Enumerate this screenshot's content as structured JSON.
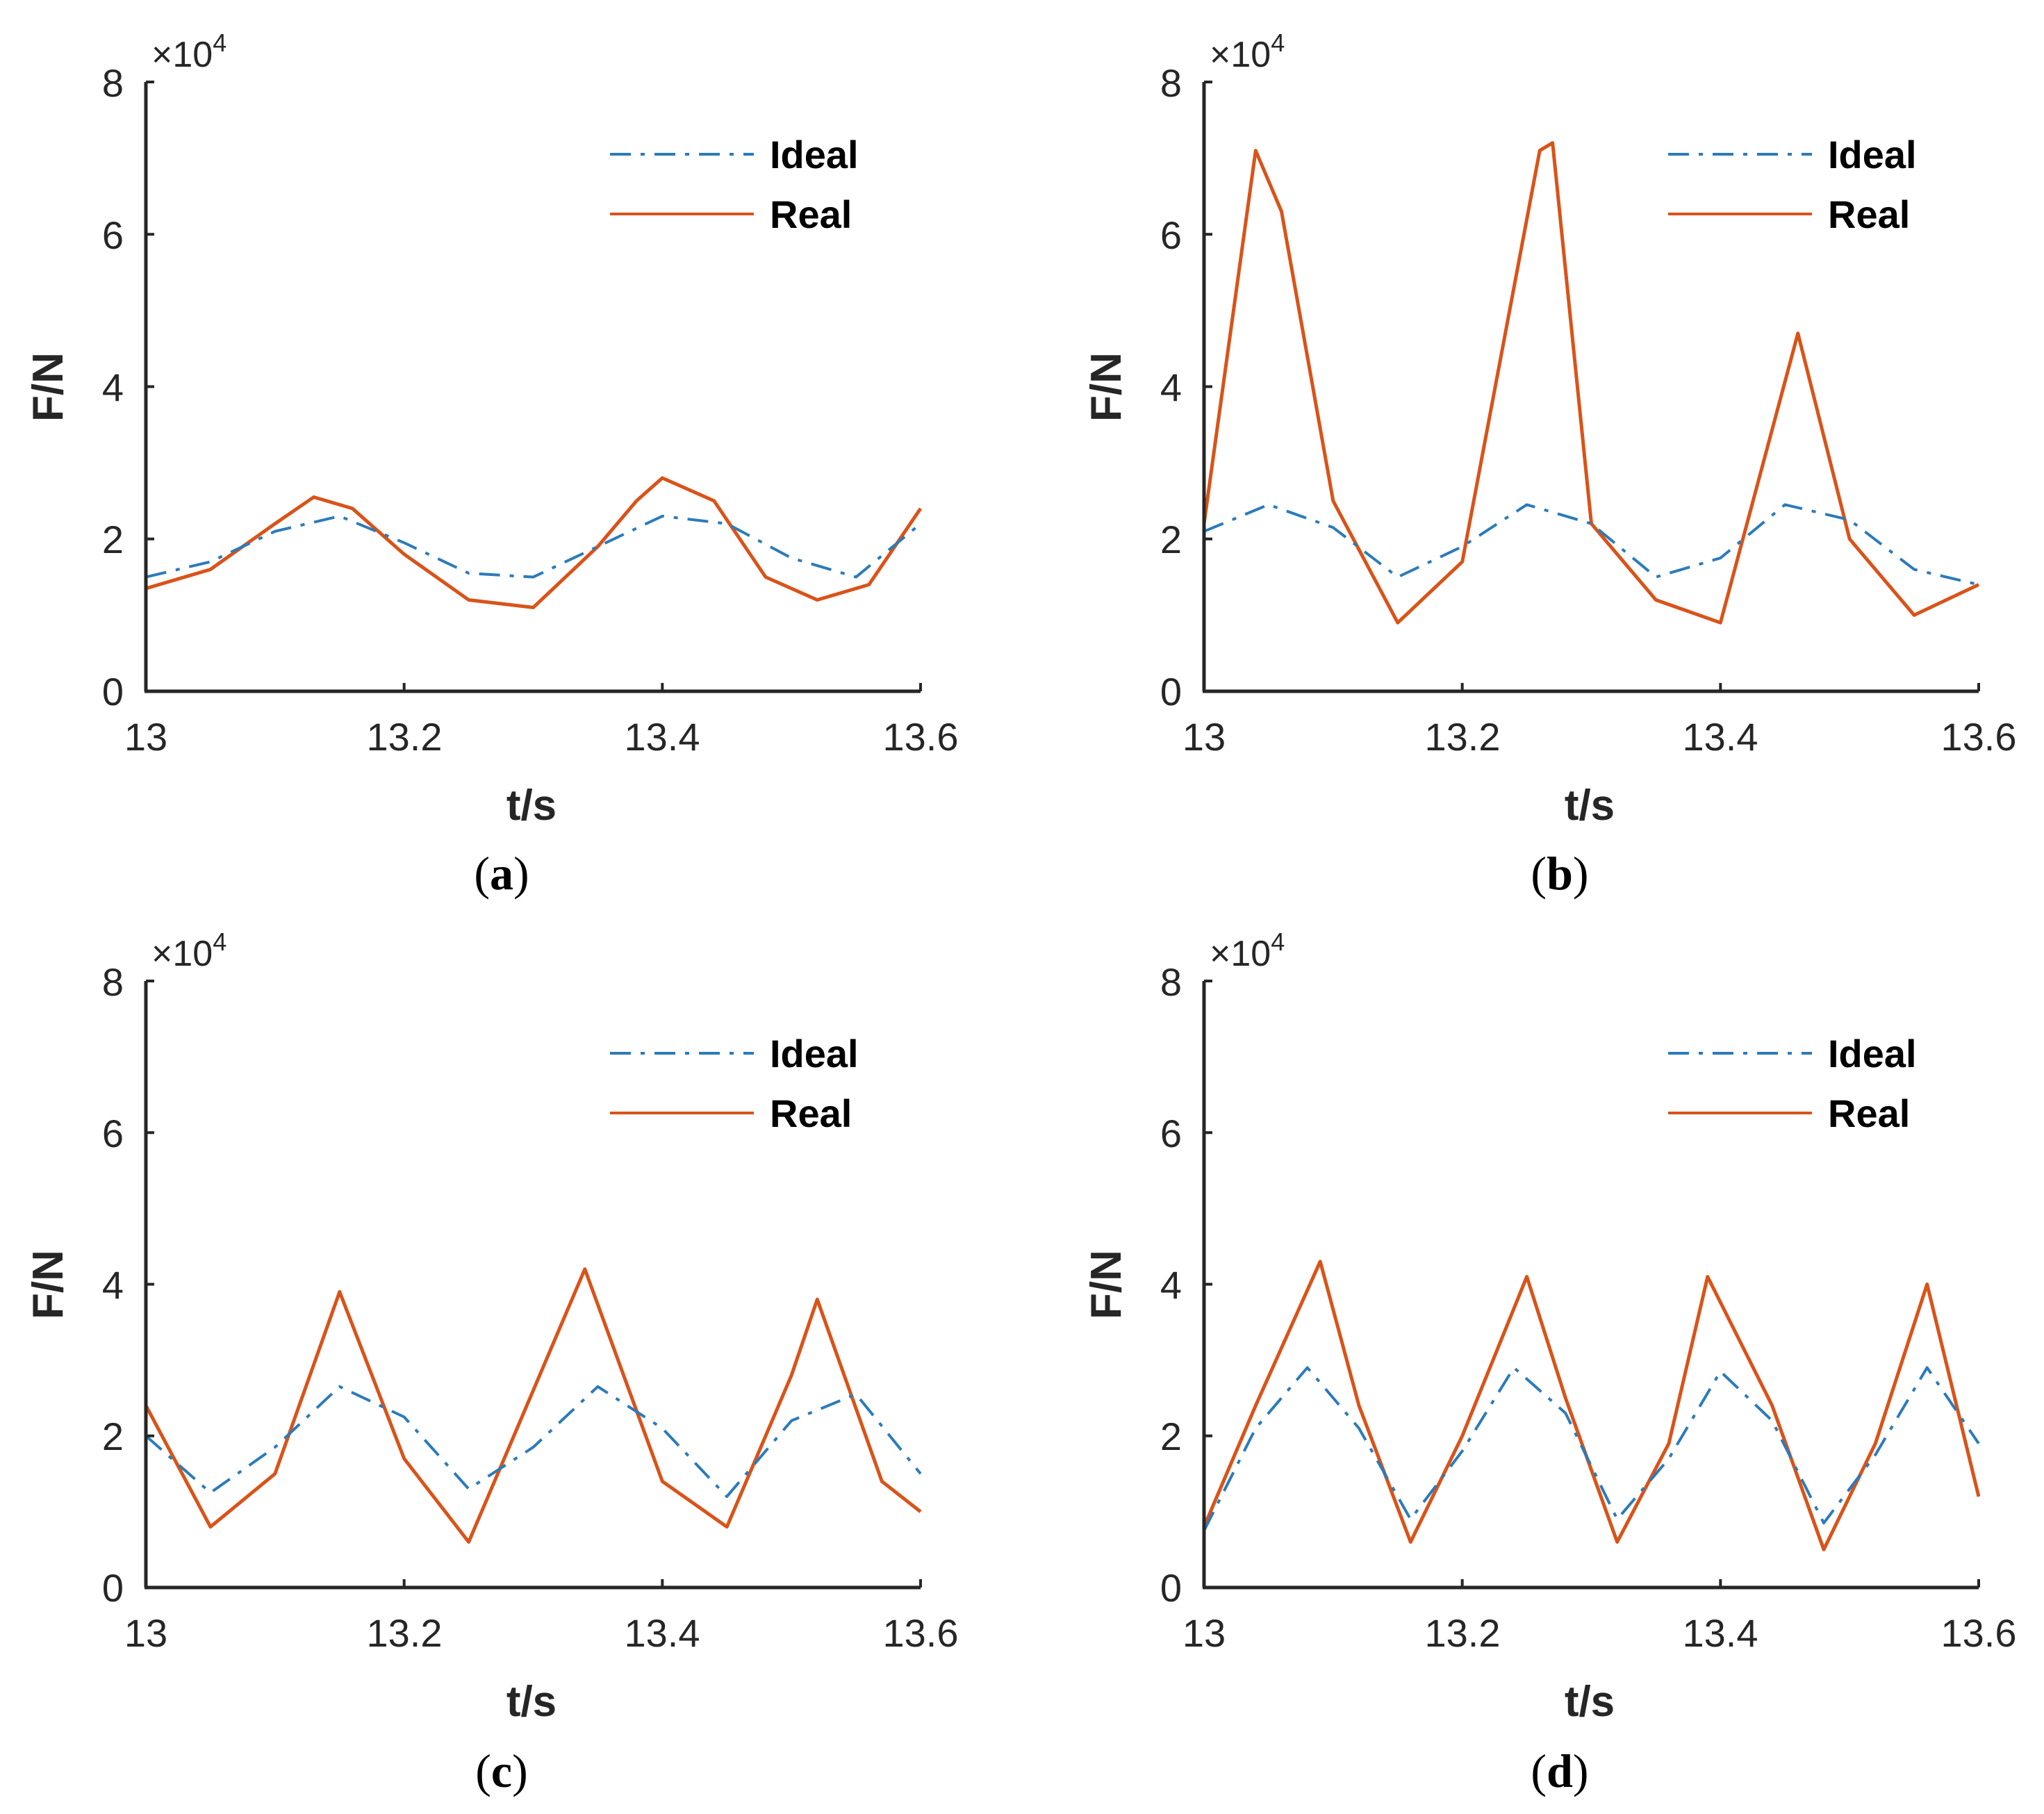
{
  "figure": {
    "panel_labels": [
      {
        "open": "(",
        "letter": "a",
        "close": ")"
      },
      {
        "open": "(",
        "letter": "b",
        "close": ")"
      },
      {
        "open": "(",
        "letter": "c",
        "close": ")"
      },
      {
        "open": "(",
        "letter": "d",
        "close": ")"
      }
    ],
    "colors": {
      "ideal": "#2b7bba",
      "real": "#d95319",
      "axis": "#262626"
    }
  },
  "chart_data": [
    {
      "type": "line",
      "panel": "a",
      "xlabel": "t/s",
      "ylabel": "F/N",
      "xlim": [
        13,
        13.6
      ],
      "ylim": [
        0,
        80000
      ],
      "x_ticks": [
        "13",
        "13.2",
        "13.4",
        "13.6"
      ],
      "y_ticks": [
        "0",
        "2",
        "4",
        "6",
        "8"
      ],
      "y_multiplier": {
        "base": "×10",
        "exp": "4"
      },
      "legend": {
        "position": "top-right",
        "entries": [
          "Ideal",
          "Real"
        ]
      },
      "series": [
        {
          "name": "Ideal",
          "style": "dash-dot",
          "x": [
            13.0,
            13.05,
            13.1,
            13.15,
            13.2,
            13.25,
            13.3,
            13.35,
            13.4,
            13.45,
            13.5,
            13.55,
            13.6
          ],
          "values": [
            15000,
            17000,
            21000,
            23000,
            19500,
            15500,
            15000,
            19000,
            23000,
            22000,
            17500,
            15000,
            22000
          ]
        },
        {
          "name": "Real",
          "style": "solid",
          "x": [
            13.0,
            13.05,
            13.1,
            13.13,
            13.16,
            13.2,
            13.25,
            13.3,
            13.35,
            13.38,
            13.4,
            13.44,
            13.48,
            13.52,
            13.56,
            13.6
          ],
          "values": [
            13500,
            16000,
            22000,
            25500,
            24000,
            18000,
            12000,
            11000,
            19000,
            25000,
            28000,
            25000,
            15000,
            12000,
            14000,
            24000
          ]
        }
      ]
    },
    {
      "type": "line",
      "panel": "b",
      "xlabel": "t/s",
      "ylabel": "F/N",
      "xlim": [
        13,
        13.6
      ],
      "ylim": [
        0,
        80000
      ],
      "x_ticks": [
        "13",
        "13.2",
        "13.4",
        "13.6"
      ],
      "y_ticks": [
        "0",
        "2",
        "4",
        "6",
        "8"
      ],
      "y_multiplier": {
        "base": "×10",
        "exp": "4"
      },
      "legend": {
        "position": "top-right",
        "entries": [
          "Ideal",
          "Real"
        ]
      },
      "series": [
        {
          "name": "Ideal",
          "style": "dash-dot",
          "x": [
            13.0,
            13.05,
            13.1,
            13.15,
            13.2,
            13.25,
            13.3,
            13.35,
            13.4,
            13.45,
            13.5,
            13.55,
            13.6
          ],
          "values": [
            21000,
            24500,
            21500,
            15000,
            19000,
            24500,
            22000,
            15000,
            17500,
            24500,
            22500,
            16000,
            14000
          ]
        },
        {
          "name": "Real",
          "style": "solid",
          "x": [
            13.0,
            13.04,
            13.06,
            13.1,
            13.15,
            13.2,
            13.26,
            13.27,
            13.3,
            13.35,
            13.4,
            13.46,
            13.5,
            13.55,
            13.6
          ],
          "values": [
            22000,
            71000,
            63000,
            25000,
            9000,
            17000,
            71000,
            72000,
            22000,
            12000,
            9000,
            47000,
            20000,
            10000,
            14000
          ]
        }
      ]
    },
    {
      "type": "line",
      "panel": "c",
      "xlabel": "t/s",
      "ylabel": "F/N",
      "xlim": [
        13,
        13.6
      ],
      "ylim": [
        0,
        80000
      ],
      "x_ticks": [
        "13",
        "13.2",
        "13.4",
        "13.6"
      ],
      "y_ticks": [
        "0",
        "2",
        "4",
        "6",
        "8"
      ],
      "y_multiplier": {
        "base": "×10",
        "exp": "4"
      },
      "legend": {
        "position": "top-right",
        "entries": [
          "Ideal",
          "Real"
        ]
      },
      "series": [
        {
          "name": "Ideal",
          "style": "dash-dot",
          "x": [
            13.0,
            13.05,
            13.1,
            13.15,
            13.2,
            13.25,
            13.3,
            13.35,
            13.4,
            13.45,
            13.5,
            13.55,
            13.6
          ],
          "values": [
            20000,
            12500,
            18500,
            26500,
            22500,
            13000,
            18500,
            26500,
            21000,
            12000,
            22000,
            25500,
            15000
          ]
        },
        {
          "name": "Real",
          "style": "solid",
          "x": [
            13.0,
            13.05,
            13.1,
            13.15,
            13.2,
            13.25,
            13.3,
            13.34,
            13.4,
            13.45,
            13.5,
            13.52,
            13.57,
            13.6
          ],
          "values": [
            24000,
            8000,
            15000,
            39000,
            17000,
            6000,
            26000,
            42000,
            14000,
            8000,
            28000,
            38000,
            14000,
            10000
          ]
        }
      ]
    },
    {
      "type": "line",
      "panel": "d",
      "xlabel": "t/s",
      "ylabel": "F/N",
      "xlim": [
        13,
        13.6
      ],
      "ylim": [
        0,
        80000
      ],
      "x_ticks": [
        "13",
        "13.2",
        "13.4",
        "13.6"
      ],
      "y_ticks": [
        "0",
        "2",
        "4",
        "6",
        "8"
      ],
      "y_multiplier": {
        "base": "×10",
        "exp": "4"
      },
      "legend": {
        "position": "top-right",
        "entries": [
          "Ideal",
          "Real"
        ]
      },
      "series": [
        {
          "name": "Ideal",
          "style": "dash-dot",
          "x": [
            13.0,
            13.04,
            13.08,
            13.12,
            13.16,
            13.2,
            13.24,
            13.28,
            13.32,
            13.36,
            13.4,
            13.44,
            13.48,
            13.52,
            13.56,
            13.6
          ],
          "values": [
            7500,
            21000,
            29000,
            21000,
            9000,
            18000,
            29000,
            23000,
            9000,
            17000,
            28500,
            22000,
            8500,
            17500,
            29000,
            19000
          ]
        },
        {
          "name": "Real",
          "style": "solid",
          "x": [
            13.0,
            13.04,
            13.09,
            13.12,
            13.16,
            13.2,
            13.25,
            13.28,
            13.32,
            13.36,
            13.39,
            13.44,
            13.48,
            13.52,
            13.56,
            13.6
          ],
          "values": [
            8000,
            24000,
            43000,
            24000,
            6000,
            20000,
            41000,
            25000,
            6000,
            19000,
            41000,
            24000,
            5000,
            19000,
            40000,
            12000
          ]
        }
      ]
    }
  ]
}
